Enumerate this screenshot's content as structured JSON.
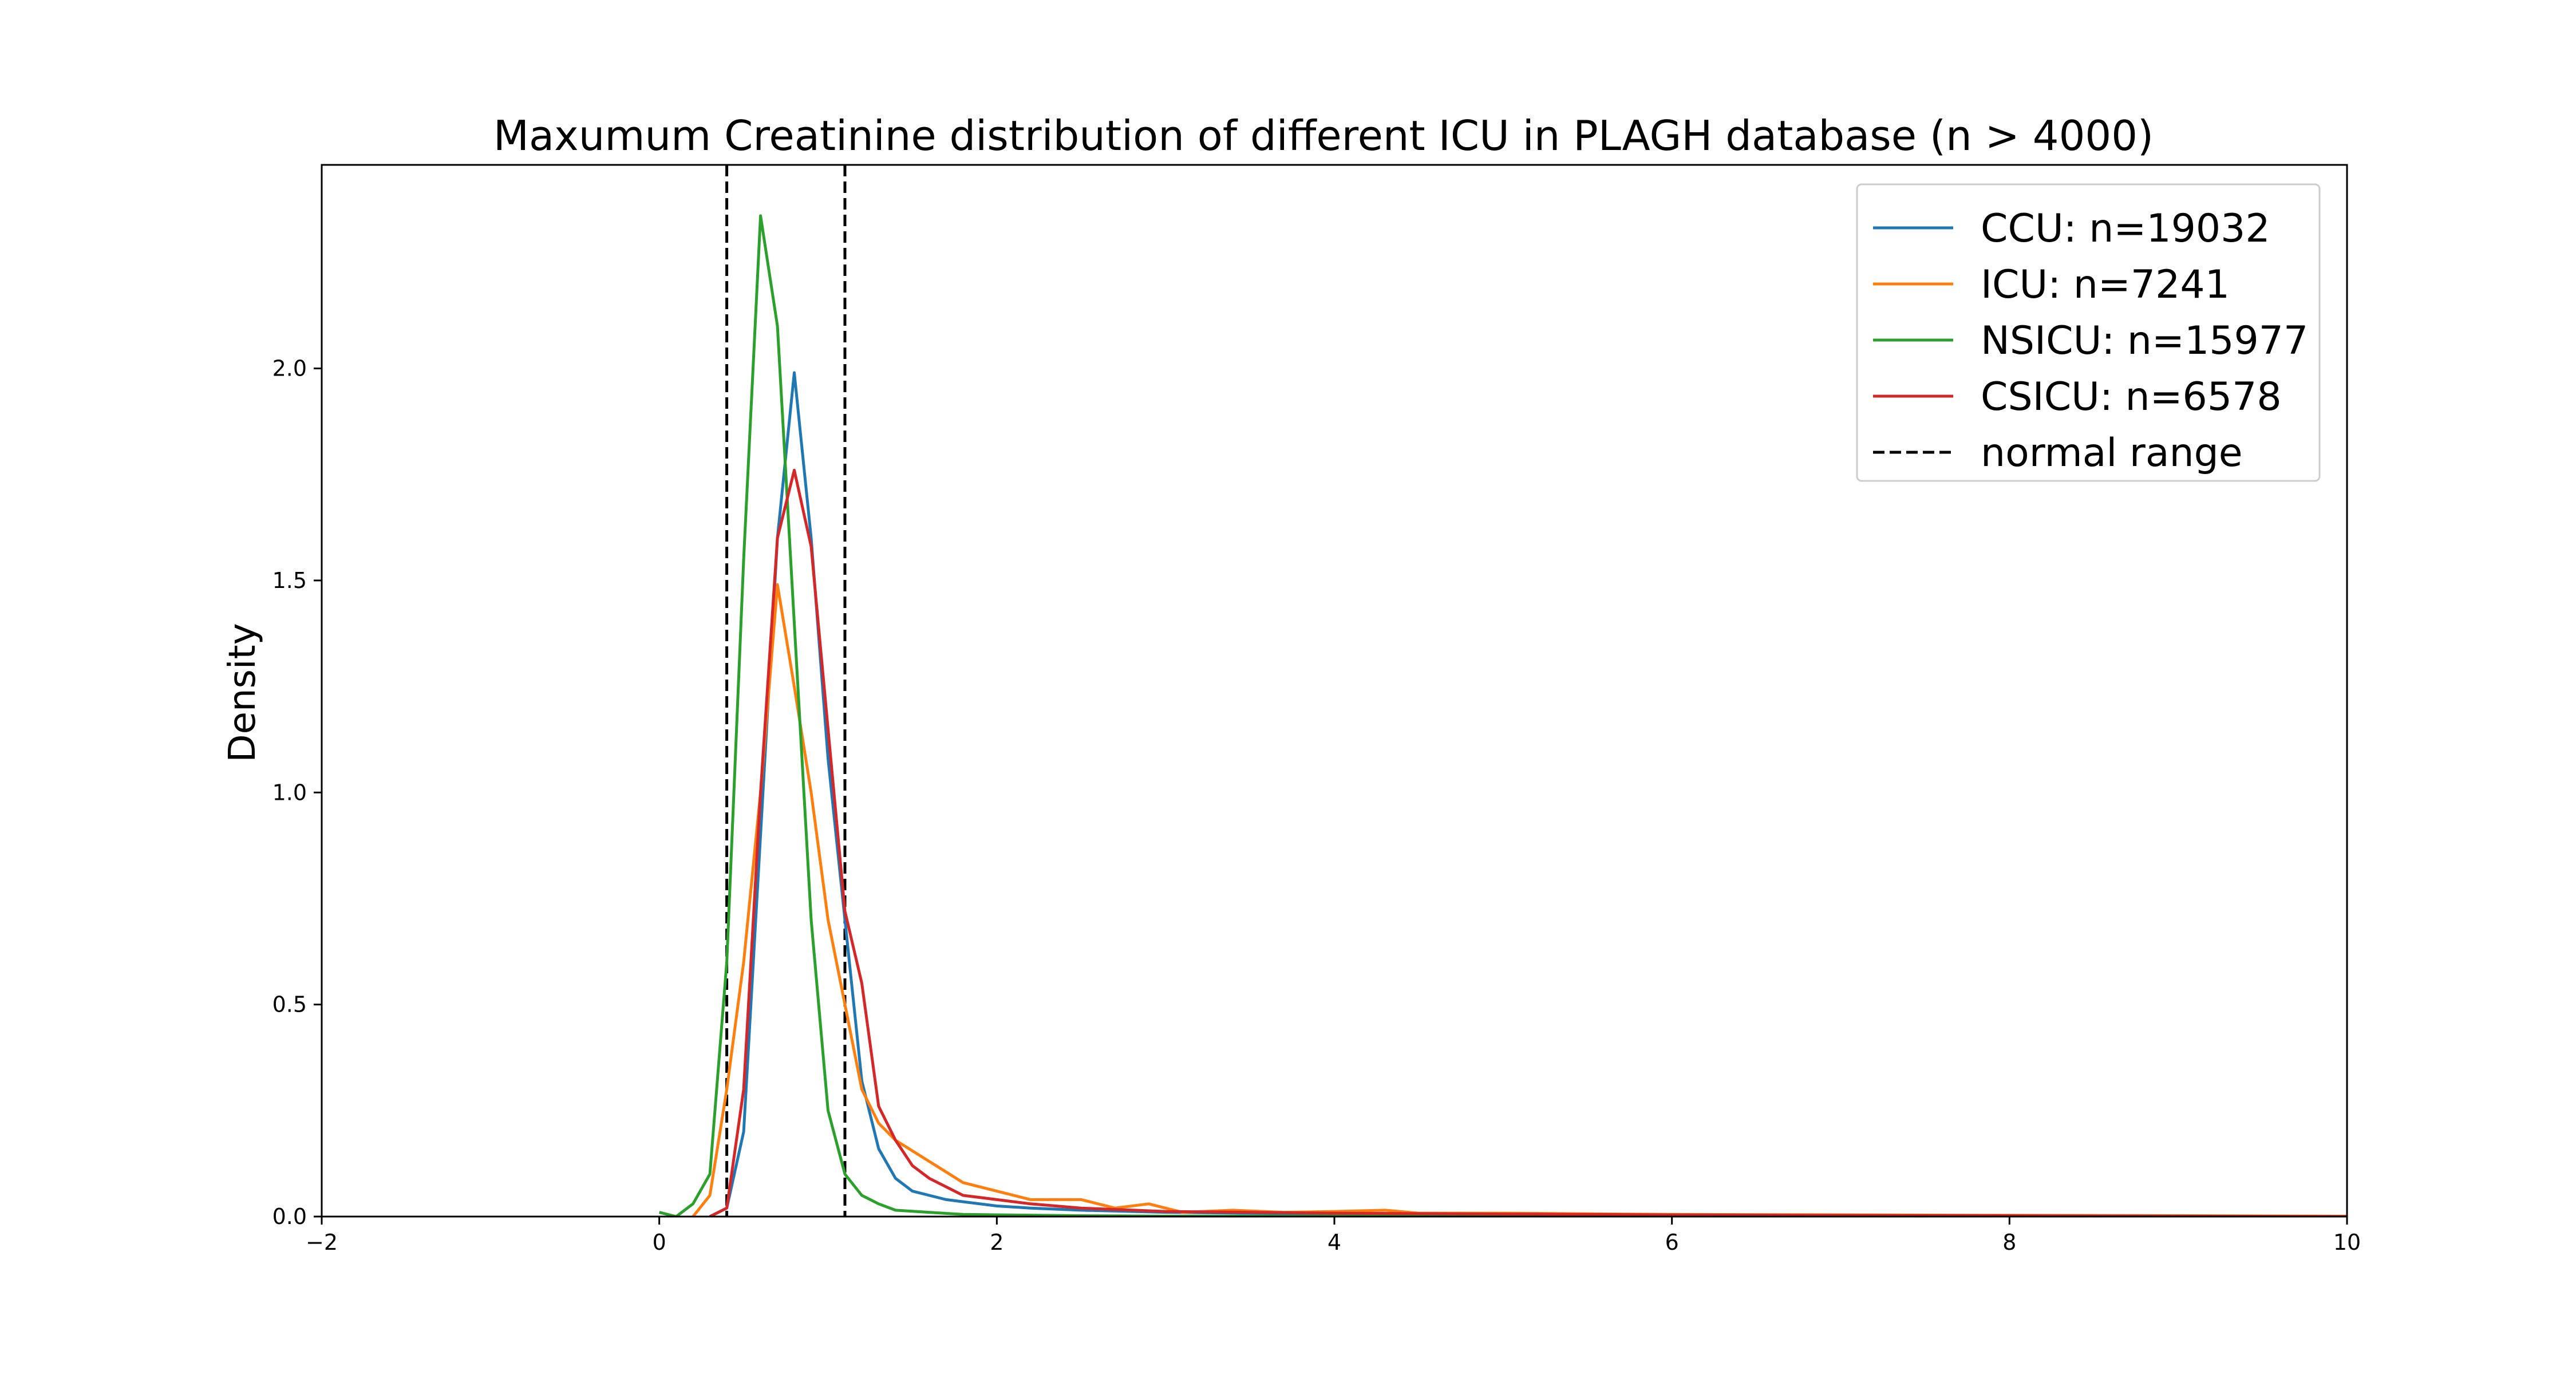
{
  "chart_data": {
    "type": "line",
    "title": "Maxumum Creatinine distribution of different ICU in PLAGH database (n > 4000)",
    "xlabel": "",
    "ylabel": "Density",
    "xlim": [
      -2,
      10
    ],
    "ylim": [
      0,
      2.48
    ],
    "xticks": [
      "−2",
      "0",
      "2",
      "4",
      "6",
      "8",
      "10"
    ],
    "xtick_values": [
      -2,
      0,
      2,
      4,
      6,
      8,
      10
    ],
    "yticks": [
      "0.0",
      "0.5",
      "1.0",
      "1.5",
      "2.0"
    ],
    "ytick_values": [
      0,
      0.5,
      1.0,
      1.5,
      2.0
    ],
    "grid": false,
    "legend_position": "top-right",
    "reference_lines": {
      "name": "normal range",
      "color": "#000000",
      "style": "dashed",
      "x": [
        0.4,
        1.1
      ]
    },
    "series": [
      {
        "name": "CCU: n=19032",
        "color": "#1f77b4",
        "x": [
          0.3,
          0.4,
          0.5,
          0.6,
          0.7,
          0.8,
          0.9,
          1.0,
          1.1,
          1.2,
          1.3,
          1.4,
          1.5,
          1.6,
          1.7,
          1.8,
          1.9,
          2.0,
          2.2,
          2.5,
          3.0,
          3.5,
          4.0,
          5.0,
          6.0,
          7.0,
          8.0,
          9.0,
          10.0
        ],
        "y": [
          0.0,
          0.02,
          0.2,
          0.9,
          1.6,
          1.99,
          1.6,
          1.08,
          0.7,
          0.32,
          0.16,
          0.09,
          0.06,
          0.05,
          0.04,
          0.035,
          0.03,
          0.025,
          0.02,
          0.015,
          0.01,
          0.008,
          0.006,
          0.004,
          0.003,
          0.002,
          0.001,
          0.001,
          0.0
        ]
      },
      {
        "name": "ICU: n=7241",
        "color": "#ff7f0e",
        "x": [
          0.2,
          0.3,
          0.4,
          0.5,
          0.6,
          0.7,
          0.8,
          0.9,
          1.0,
          1.1,
          1.2,
          1.3,
          1.4,
          1.6,
          1.8,
          2.0,
          2.2,
          2.5,
          2.7,
          2.9,
          3.1,
          3.4,
          3.7,
          4.0,
          4.3,
          4.5,
          5.0,
          6.0,
          7.0,
          8.0,
          9.0,
          10.0
        ],
        "y": [
          0.0,
          0.05,
          0.3,
          0.6,
          1.0,
          1.49,
          1.25,
          1.0,
          0.7,
          0.5,
          0.3,
          0.22,
          0.18,
          0.13,
          0.08,
          0.06,
          0.04,
          0.04,
          0.02,
          0.03,
          0.01,
          0.015,
          0.01,
          0.012,
          0.015,
          0.008,
          0.008,
          0.005,
          0.004,
          0.003,
          0.002,
          0.001
        ]
      },
      {
        "name": "NSICU: n=15977",
        "color": "#2ca02c",
        "x": [
          0.0,
          0.1,
          0.2,
          0.3,
          0.4,
          0.5,
          0.6,
          0.7,
          0.8,
          0.9,
          1.0,
          1.1,
          1.2,
          1.3,
          1.4,
          1.6,
          1.8,
          2.0,
          2.5,
          3.0,
          4.0,
          6.0,
          8.0,
          10.0
        ],
        "y": [
          0.01,
          0.0,
          0.03,
          0.1,
          0.6,
          1.55,
          2.36,
          2.1,
          1.4,
          0.7,
          0.25,
          0.1,
          0.05,
          0.03,
          0.015,
          0.01,
          0.005,
          0.004,
          0.002,
          0.001,
          0.001,
          0.0,
          0.0,
          0.0
        ]
      },
      {
        "name": "CSICU: n=6578",
        "color": "#d62728",
        "x": [
          0.3,
          0.4,
          0.5,
          0.6,
          0.7,
          0.8,
          0.9,
          1.0,
          1.1,
          1.2,
          1.3,
          1.4,
          1.5,
          1.6,
          1.8,
          2.0,
          2.2,
          2.5,
          3.0,
          3.5,
          4.0,
          5.0,
          6.0,
          7.0,
          8.0,
          9.0,
          10.0
        ],
        "y": [
          0.0,
          0.02,
          0.3,
          1.0,
          1.6,
          1.76,
          1.58,
          1.15,
          0.72,
          0.55,
          0.26,
          0.18,
          0.12,
          0.09,
          0.05,
          0.04,
          0.03,
          0.02,
          0.012,
          0.01,
          0.008,
          0.006,
          0.004,
          0.003,
          0.002,
          0.001,
          0.0
        ]
      }
    ]
  }
}
